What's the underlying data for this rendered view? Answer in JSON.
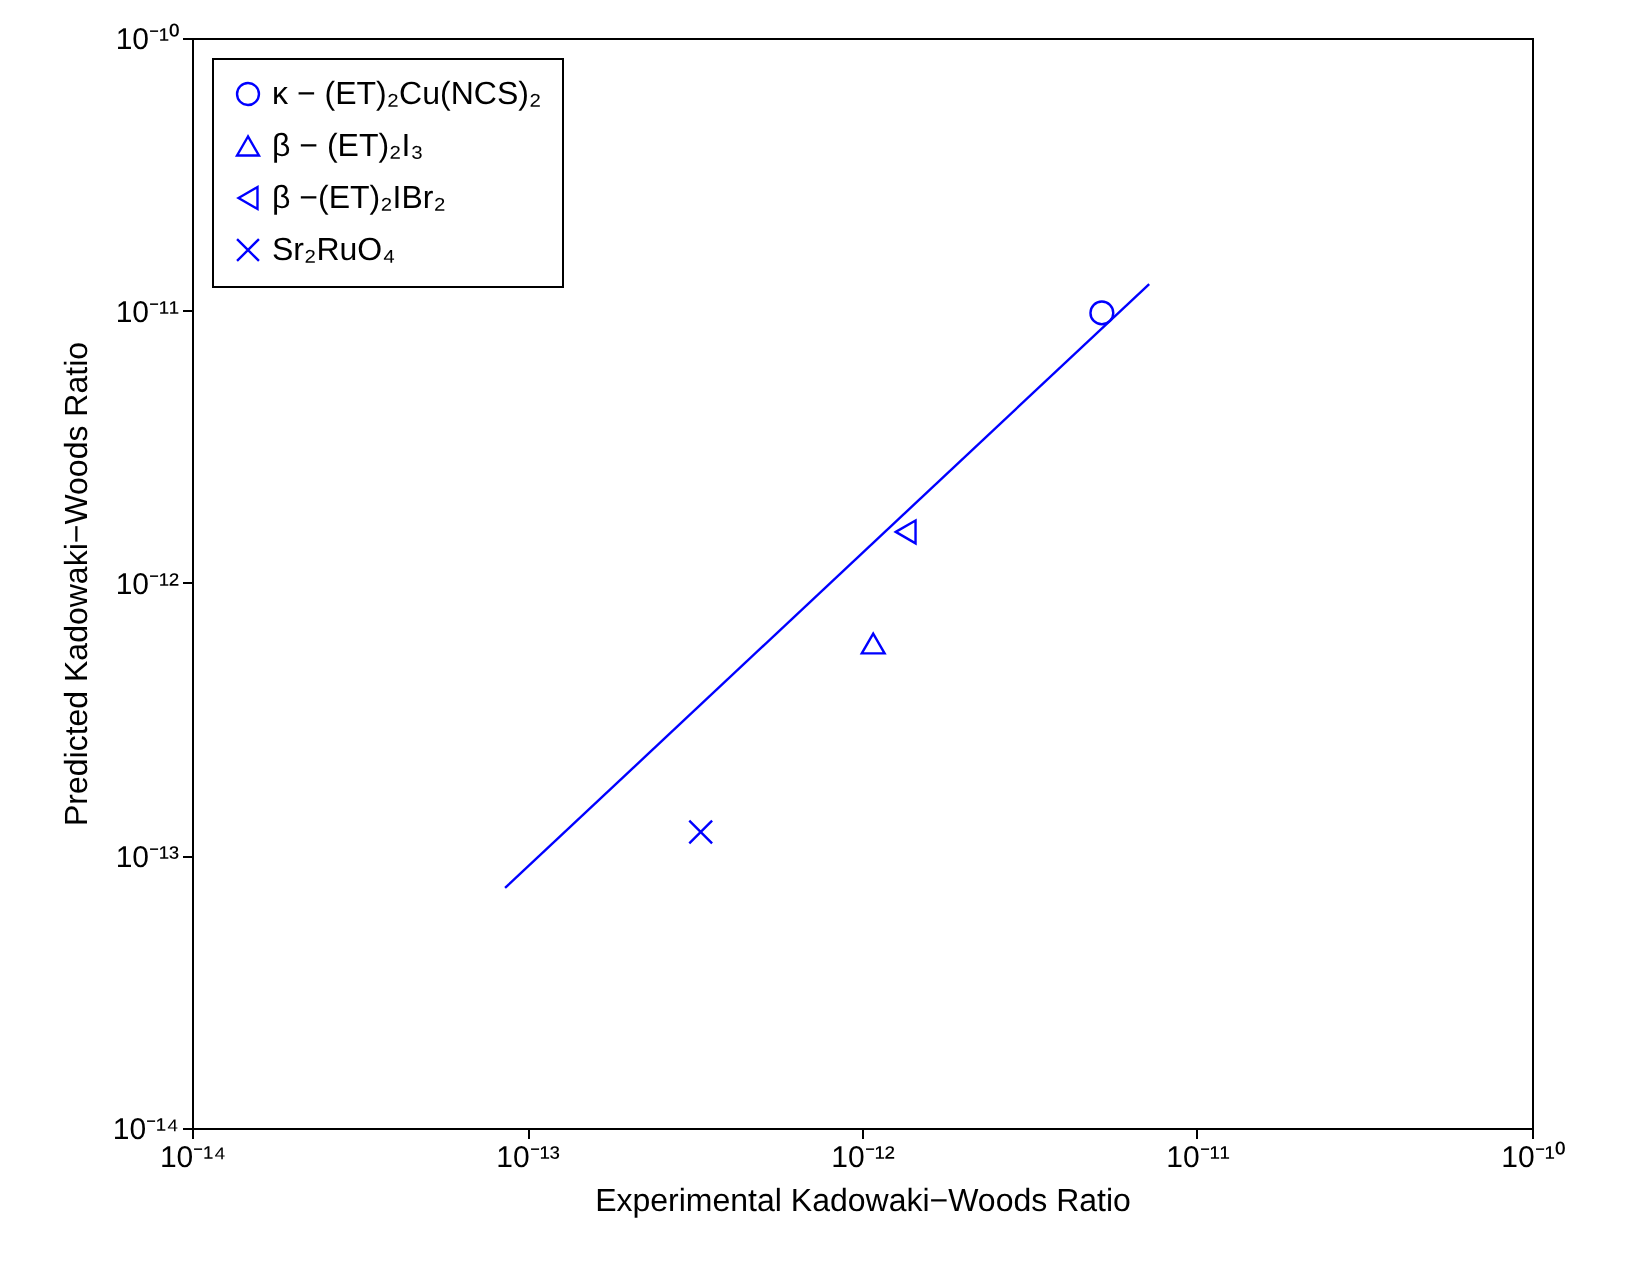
{
  "chart_data": {
    "type": "scatter",
    "xlabel": "Experimental Kadowaki−Woods Ratio",
    "ylabel": "Predicted Kadowaki−Woods Ratio",
    "log": "xy",
    "grid": false,
    "legend": "top left",
    "xlim": [
      1e-14,
      1e-10
    ],
    "ylim": [
      1e-14,
      1e-10
    ],
    "xticks": [
      {
        "value": 1e-14,
        "label": "10⁻¹⁴"
      },
      {
        "value": 1e-13,
        "label": "10⁻¹³"
      },
      {
        "value": 1e-12,
        "label": "10⁻¹²"
      },
      {
        "value": 1e-11,
        "label": "10⁻¹¹"
      },
      {
        "value": 1e-10,
        "label": "10⁻¹⁰"
      }
    ],
    "yticks": [
      {
        "value": 1e-14,
        "label": "10⁻¹⁴"
      },
      {
        "value": 1e-13,
        "label": "10⁻¹³"
      },
      {
        "value": 1e-12,
        "label": "10⁻¹²"
      },
      {
        "value": 1e-11,
        "label": "10⁻¹¹"
      },
      {
        "value": 1e-10,
        "label": "10⁻¹⁰"
      }
    ],
    "series": [
      {
        "name": "κ − (ET)₂Cu(NCS)₂",
        "color": "#0000ff",
        "marker": "circle",
        "x": [
          5.2e-12
        ],
        "values": [
          9.8e-12
        ]
      },
      {
        "name": "β − (ET)₂I₃",
        "color": "#0000ff",
        "marker": "triangle",
        "x": [
          1.08e-12
        ],
        "values": [
          6e-13
        ]
      },
      {
        "name": "β −(ET)₂IBr₂",
        "color": "#0000ff",
        "marker": "triangle-left",
        "x": [
          1.35e-12
        ],
        "values": [
          1.54e-12
        ]
      },
      {
        "name": "Sr₂RuO₄",
        "color": "#0000ff",
        "marker": "cross",
        "x": [
          3.3e-13
        ],
        "values": [
          1.22e-13
        ]
      },
      {
        "color": "#0000ff",
        "type": "line",
        "line_style": "solid",
        "x": [
          8.6e-14,
          7.2e-12
        ],
        "values": [
          7.6e-14,
          1.25e-11
        ]
      }
    ]
  }
}
